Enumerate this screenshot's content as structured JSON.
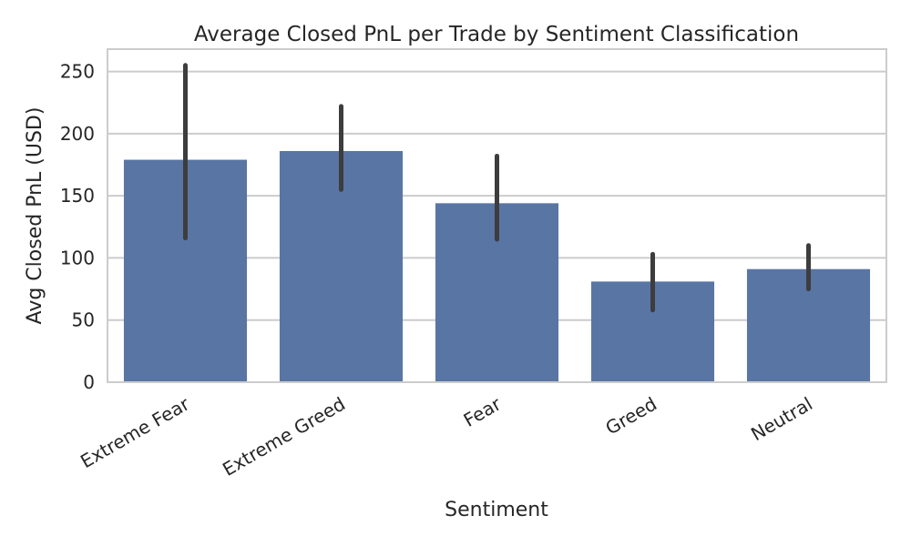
{
  "chart_data": {
    "type": "bar",
    "title": "Average Closed PnL per Trade by Sentiment Classification",
    "xlabel": "Sentiment",
    "ylabel": "Avg Closed PnL (USD)",
    "categories": [
      "Extreme Fear",
      "Extreme Greed",
      "Fear",
      "Greed",
      "Neutral"
    ],
    "values": [
      179,
      186,
      144,
      81,
      91
    ],
    "ci_low": [
      116,
      155,
      115,
      58,
      75
    ],
    "ci_high": [
      255,
      222,
      182,
      103,
      110
    ],
    "ylim": [
      0,
      268
    ],
    "yticks": [
      0,
      50,
      100,
      150,
      200,
      250
    ],
    "grid": true,
    "bar_color": "#5975a4",
    "errorbar_color": "#3d3d3d"
  }
}
